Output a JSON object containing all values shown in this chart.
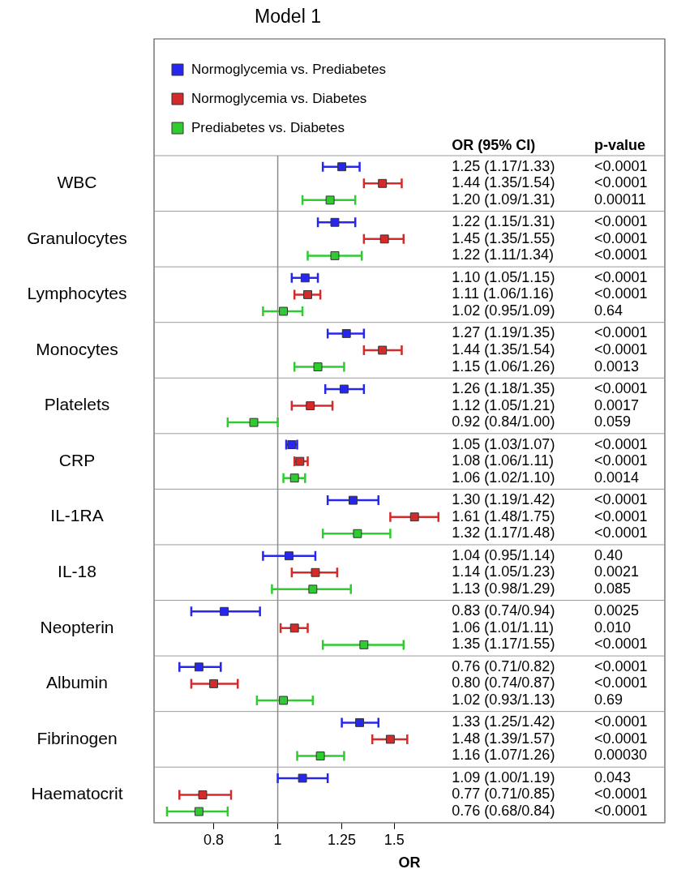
{
  "chart_data": {
    "type": "scatter",
    "orientation": "horizontal",
    "title": "Model 1",
    "xlabel": "OR",
    "log": "x",
    "xlim": [
      0.65,
      3.85
    ],
    "xticks": [
      0.8,
      1,
      1.25,
      1.5
    ],
    "grid": "y",
    "legend": "top left",
    "marker": "square",
    "categories": [
      "WBC",
      "Granulocytes",
      "Lymphocytes",
      "Monocytes",
      "Platelets",
      "CRP",
      "IL-1RA",
      "IL-18",
      "Neopterin",
      "Albumin",
      "Fibrinogen",
      "Haematocrit"
    ],
    "annotations": [
      "OR (95% CI)",
      "p-value"
    ],
    "ref_lines": [
      {
        "axis": "x",
        "value": 1,
        "color": "#8c8c8c"
      }
    ],
    "series": [
      {
        "name": "Normoglycemia vs. Prediabetes",
        "color": "#2626f0",
        "values": [
          1.25,
          1.22,
          1.1,
          1.27,
          1.26,
          1.05,
          1.3,
          1.04,
          0.83,
          0.76,
          1.33,
          1.09
        ],
        "errors": [
          [
            1.17,
            1.33
          ],
          [
            1.15,
            1.31
          ],
          [
            1.05,
            1.15
          ],
          [
            1.19,
            1.35
          ],
          [
            1.18,
            1.35
          ],
          [
            1.03,
            1.07
          ],
          [
            1.19,
            1.42
          ],
          [
            0.95,
            1.14
          ],
          [
            0.74,
            0.94
          ],
          [
            0.71,
            0.82
          ],
          [
            1.25,
            1.42
          ],
          [
            1.0,
            1.19
          ]
        ],
        "value_labels": [
          "1.25 (1.17/1.33)\t<0.0001",
          "1.22 (1.15/1.31)\t<0.0001",
          "1.10 (1.05/1.15)\t<0.0001",
          "1.27 (1.19/1.35)\t<0.0001",
          "1.26 (1.18/1.35)\t<0.0001",
          "1.05 (1.03/1.07)\t<0.0001",
          "1.30 (1.19/1.42)\t<0.0001",
          "1.04 (0.95/1.14)\t0.40",
          "0.83 (0.74/0.94)\t0.0025",
          "0.76 (0.71/0.82)\t<0.0001",
          "1.33 (1.25/1.42)\t<0.0001",
          "1.09 (1.00/1.19)\t0.043"
        ]
      },
      {
        "name": "Normoglycemia vs. Diabetes",
        "color": "#d42a2a",
        "values": [
          1.44,
          1.45,
          1.11,
          1.44,
          1.12,
          1.08,
          1.61,
          1.14,
          1.06,
          0.8,
          1.48,
          0.77
        ],
        "errors": [
          [
            1.35,
            1.54
          ],
          [
            1.35,
            1.55
          ],
          [
            1.06,
            1.16
          ],
          [
            1.35,
            1.54
          ],
          [
            1.05,
            1.21
          ],
          [
            1.06,
            1.11
          ],
          [
            1.48,
            1.75
          ],
          [
            1.05,
            1.23
          ],
          [
            1.01,
            1.11
          ],
          [
            0.74,
            0.87
          ],
          [
            1.39,
            1.57
          ],
          [
            0.71,
            0.85
          ]
        ],
        "value_labels": [
          "1.44 (1.35/1.54)\t<0.0001",
          "1.45 (1.35/1.55)\t<0.0001",
          "1.11 (1.06/1.16)\t<0.0001",
          "1.44 (1.35/1.54)\t<0.0001",
          "1.12 (1.05/1.21)\t0.0017",
          "1.08 (1.06/1.11)\t<0.0001",
          "1.61 (1.48/1.75)\t<0.0001",
          "1.14 (1.05/1.23)\t0.0021",
          "1.06 (1.01/1.11)\t0.010",
          "0.80 (0.74/0.87)\t<0.0001",
          "1.48 (1.39/1.57)\t<0.0001",
          "0.77 (0.71/0.85)\t<0.0001"
        ]
      },
      {
        "name": "Prediabetes vs. Diabetes",
        "color": "#2ecc2e",
        "values": [
          1.2,
          1.22,
          1.02,
          1.15,
          0.92,
          1.06,
          1.32,
          1.13,
          1.35,
          1.02,
          1.16,
          0.76
        ],
        "errors": [
          [
            1.09,
            1.31
          ],
          [
            1.11,
            1.34
          ],
          [
            0.95,
            1.09
          ],
          [
            1.06,
            1.26
          ],
          [
            0.84,
            1.0
          ],
          [
            1.02,
            1.1
          ],
          [
            1.17,
            1.48
          ],
          [
            0.98,
            1.29
          ],
          [
            1.17,
            1.55
          ],
          [
            0.93,
            1.13
          ],
          [
            1.07,
            1.26
          ],
          [
            0.68,
            0.84
          ]
        ],
        "value_labels": [
          "1.20 (1.09/1.31)\t0.00011",
          "1.22 (1.11/1.34)\t<0.0001",
          "1.02 (0.95/1.09)\t0.64",
          "1.15 (1.06/1.26)\t0.0013",
          "0.92 (0.84/1.00)\t0.059",
          "1.06 (1.02/1.10)\t0.0014",
          "1.32 (1.17/1.48)\t<0.0001",
          "1.13 (0.98/1.29)\t0.085",
          "1.35 (1.17/1.55)\t<0.0001",
          "1.02 (0.93/1.13)\t0.69",
          "1.16 (1.07/1.26)\t0.00030",
          "0.76 (0.68/0.84)\t<0.0001"
        ]
      }
    ]
  }
}
